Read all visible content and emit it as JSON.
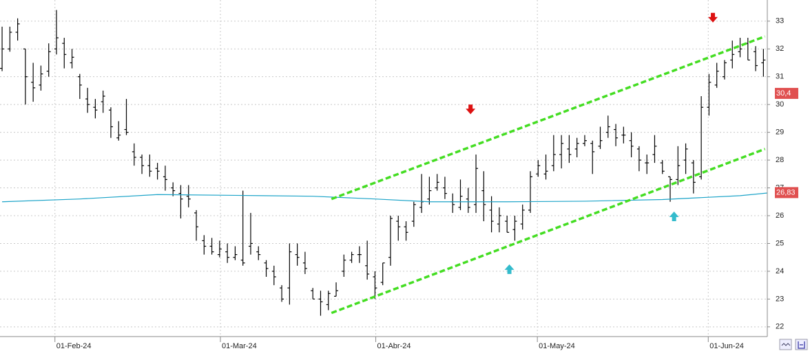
{
  "chart_data": {
    "type": "ohlc",
    "color": "#000000",
    "ohlc": [
      [
        31.3,
        32.8,
        31.2,
        32.0
      ],
      [
        32.0,
        32.8,
        31.9,
        32.6
      ],
      [
        32.6,
        33.1,
        32.3,
        32.9
      ],
      [
        32.0,
        32.0,
        30.0,
        31.0
      ],
      [
        30.8,
        31.5,
        30.1,
        30.6
      ],
      [
        30.7,
        31.4,
        30.5,
        31.1
      ],
      [
        31.2,
        32.2,
        31.0,
        31.9
      ],
      [
        32.0,
        33.4,
        31.8,
        32.4
      ],
      [
        32.2,
        32.4,
        31.3,
        31.8
      ],
      [
        31.5,
        32.0,
        31.3,
        31.7
      ],
      [
        31.0,
        31.1,
        30.2,
        30.7
      ],
      [
        30.2,
        30.6,
        29.7,
        30.0
      ],
      [
        29.9,
        30.2,
        29.5,
        29.8
      ],
      [
        30.1,
        30.5,
        29.7,
        30.3
      ],
      [
        29.8,
        29.9,
        28.8,
        29.2
      ],
      [
        28.8,
        29.4,
        28.7,
        28.9
      ],
      [
        29.1,
        30.2,
        28.9,
        29.0
      ],
      [
        28.3,
        28.6,
        27.8,
        28.1
      ],
      [
        28.1,
        28.2,
        27.5,
        27.8
      ],
      [
        27.8,
        28.2,
        27.4,
        27.6
      ],
      [
        27.7,
        27.9,
        27.3,
        27.6
      ],
      [
        27.4,
        27.8,
        26.9,
        27.3
      ],
      [
        27.0,
        27.2,
        26.7,
        26.9
      ],
      [
        26.8,
        27.1,
        25.9,
        26.6
      ],
      [
        26.7,
        27.1,
        26.3,
        26.6
      ],
      [
        26.1,
        26.2,
        25.1,
        25.6
      ],
      [
        25.1,
        25.3,
        24.6,
        24.9
      ],
      [
        24.9,
        25.2,
        24.6,
        24.7
      ],
      [
        24.6,
        25.1,
        24.5,
        24.8
      ],
      [
        24.7,
        25.0,
        24.3,
        24.5
      ],
      [
        24.5,
        24.9,
        24.4,
        24.6
      ],
      [
        24.4,
        26.9,
        24.2,
        24.3
      ],
      [
        24.9,
        26.1,
        24.6,
        25.0
      ],
      [
        24.7,
        24.9,
        24.4,
        24.6
      ],
      [
        24.3,
        24.4,
        23.8,
        24.1
      ],
      [
        24.0,
        24.2,
        23.5,
        23.8
      ],
      [
        23.4,
        23.5,
        22.9,
        23.0
      ],
      [
        23.4,
        25.0,
        22.8,
        24.7
      ],
      [
        24.6,
        25.0,
        24.2,
        24.5
      ],
      [
        24.3,
        24.7,
        23.9,
        24.1
      ],
      [
        23.3,
        23.4,
        23.0,
        23.0
      ],
      [
        23.0,
        23.3,
        22.4,
        22.9
      ],
      [
        22.8,
        23.3,
        22.6,
        23.2
      ],
      [
        23.1,
        23.6,
        23.1,
        23.3
      ],
      [
        24.0,
        24.6,
        23.8,
        24.4
      ],
      [
        24.4,
        24.7,
        24.3,
        24.6
      ],
      [
        24.6,
        24.9,
        24.3,
        24.6
      ],
      [
        24.2,
        25.1,
        23.7,
        23.9
      ],
      [
        23.8,
        24.0,
        23.0,
        23.4
      ],
      [
        23.6,
        24.3,
        23.5,
        24.3
      ],
      [
        24.5,
        26.0,
        24.2,
        25.9
      ],
      [
        25.8,
        26.0,
        25.1,
        25.6
      ],
      [
        25.6,
        25.8,
        25.1,
        25.4
      ],
      [
        25.8,
        26.5,
        25.6,
        26.4
      ],
      [
        26.3,
        27.5,
        26.1,
        26.5
      ],
      [
        26.6,
        27.4,
        26.4,
        26.9
      ],
      [
        27.0,
        27.5,
        26.9,
        27.2
      ],
      [
        27.0,
        27.4,
        26.6,
        26.8
      ],
      [
        26.5,
        26.8,
        26.1,
        26.4
      ],
      [
        26.3,
        27.3,
        26.2,
        26.7
      ],
      [
        26.6,
        27.0,
        26.1,
        26.3
      ],
      [
        26.4,
        28.2,
        26.1,
        27.7
      ],
      [
        26.9,
        27.6,
        25.8,
        26.4
      ],
      [
        26.2,
        26.7,
        25.4,
        25.8
      ],
      [
        25.7,
        26.3,
        25.4,
        26.0
      ],
      [
        25.8,
        26.0,
        25.4,
        25.4
      ],
      [
        25.5,
        26.0,
        25.1,
        25.8
      ],
      [
        25.7,
        26.4,
        25.5,
        26.2
      ],
      [
        26.2,
        27.6,
        26.1,
        27.4
      ],
      [
        27.5,
        28.0,
        27.4,
        27.8
      ],
      [
        27.5,
        28.2,
        27.3,
        27.6
      ],
      [
        27.8,
        28.9,
        27.6,
        28.2
      ],
      [
        28.2,
        28.9,
        27.7,
        28.6
      ],
      [
        28.4,
        28.9,
        27.9,
        28.2
      ],
      [
        28.4,
        28.8,
        28.1,
        28.6
      ],
      [
        28.6,
        28.9,
        28.5,
        28.7
      ],
      [
        28.6,
        28.7,
        27.5,
        28.3
      ],
      [
        28.5,
        29.2,
        28.4,
        28.7
      ],
      [
        29.0,
        29.6,
        28.8,
        29.2
      ],
      [
        29.1,
        29.3,
        28.5,
        28.8
      ],
      [
        28.9,
        29.2,
        28.6,
        28.9
      ],
      [
        28.7,
        29.0,
        28.1,
        28.5
      ],
      [
        28.4,
        28.5,
        27.6,
        28.0
      ],
      [
        27.9,
        28.2,
        27.5,
        27.9
      ],
      [
        28.2,
        28.9,
        27.9,
        28.5
      ],
      [
        27.9,
        28.0,
        27.5,
        27.6
      ],
      [
        27.4,
        27.4,
        26.5,
        27.3
      ],
      [
        27.3,
        28.5,
        27.1,
        27.8
      ],
      [
        28.0,
        28.6,
        27.5,
        28.4
      ],
      [
        27.9,
        28.0,
        26.8,
        27.2
      ],
      [
        27.4,
        30.3,
        27.3,
        29.9
      ],
      [
        29.9,
        31.1,
        29.6,
        30.8
      ],
      [
        30.7,
        31.5,
        30.6,
        31.2
      ],
      [
        31.0,
        31.6,
        30.9,
        31.5
      ],
      [
        31.6,
        32.3,
        31.3,
        31.8
      ],
      [
        31.9,
        32.4,
        31.7,
        32.0
      ],
      [
        32.2,
        32.4,
        31.6,
        31.6
      ],
      [
        31.9,
        32.1,
        31.2,
        31.4
      ],
      [
        31.5,
        32.0,
        31.0,
        31.6
      ],
      [
        31.2,
        31.7,
        29.9,
        30.4
      ]
    ],
    "moving_average": {
      "color": "#1aa3c8",
      "x": [
        0,
        10,
        20,
        30,
        40,
        48,
        55,
        65,
        75,
        85,
        90,
        95,
        99
      ],
      "values": [
        26.5,
        26.6,
        26.76,
        26.73,
        26.7,
        26.6,
        26.5,
        26.5,
        26.52,
        26.58,
        26.65,
        26.72,
        26.83
      ]
    },
    "trendlines": [
      {
        "color": "#44dd22",
        "x": [
          42.4,
          98.2
        ],
        "values": [
          26.6,
          32.45
        ]
      },
      {
        "color": "#44dd22",
        "x": [
          42.4,
          98.2
        ],
        "values": [
          22.5,
          28.4
        ]
      }
    ],
    "signals": [
      {
        "direction": "down",
        "color": "#dd1111",
        "x": 60.3,
        "value": 29.8
      },
      {
        "direction": "down",
        "color": "#dd1111",
        "x": 91.5,
        "value": 33.1
      },
      {
        "direction": "up",
        "color": "#33bbcc",
        "x": 65.3,
        "value": 24.1
      },
      {
        "direction": "up",
        "color": "#33bbcc",
        "x": 86.5,
        "value": 26.0
      }
    ],
    "price_markers": [
      {
        "value": 30.4,
        "label": "30,4"
      },
      {
        "value": 26.83,
        "label": "26,83"
      }
    ],
    "marker_color": "#e05050",
    "xlim": [
      -0.27,
      98.5
    ],
    "xticks": [
      {
        "value": 6.8,
        "label": "01-Feb-24"
      },
      {
        "value": 28.1,
        "label": "01-Mar-24"
      },
      {
        "value": 48.1,
        "label": "01-Abr-24"
      },
      {
        "value": 68.9,
        "label": "01-May-24"
      },
      {
        "value": 90.9,
        "label": "01-Jun-24"
      }
    ],
    "ylim": [
      21.65,
      33.76
    ],
    "yticks": [
      22,
      23,
      24,
      25,
      26,
      27,
      28,
      29,
      30,
      31,
      32,
      33
    ],
    "grid": true
  }
}
